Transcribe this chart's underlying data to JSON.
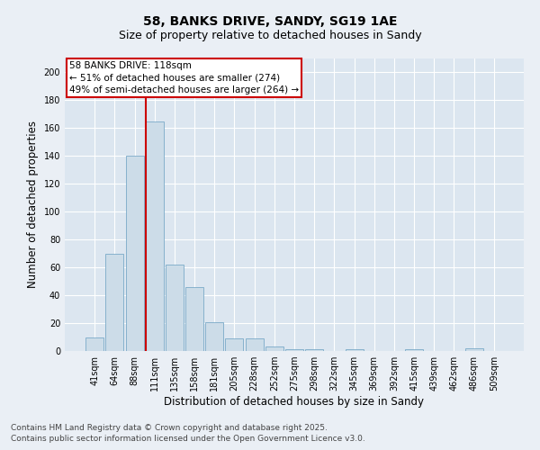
{
  "title_line1": "58, BANKS DRIVE, SANDY, SG19 1AE",
  "title_line2": "Size of property relative to detached houses in Sandy",
  "xlabel": "Distribution of detached houses by size in Sandy",
  "ylabel": "Number of detached properties",
  "categories": [
    "41sqm",
    "64sqm",
    "88sqm",
    "111sqm",
    "135sqm",
    "158sqm",
    "181sqm",
    "205sqm",
    "228sqm",
    "252sqm",
    "275sqm",
    "298sqm",
    "322sqm",
    "345sqm",
    "369sqm",
    "392sqm",
    "415sqm",
    "439sqm",
    "462sqm",
    "486sqm",
    "509sqm"
  ],
  "values": [
    10,
    70,
    140,
    165,
    62,
    46,
    21,
    9,
    9,
    3,
    1,
    1,
    0,
    1,
    0,
    0,
    1,
    0,
    0,
    2,
    0
  ],
  "bar_color": "#ccdce8",
  "bar_edge_color": "#7aaac8",
  "bar_linewidth": 0.6,
  "red_line_x": 2.57,
  "annotation_title": "58 BANKS DRIVE: 118sqm",
  "annotation_line1": "← 51% of detached houses are smaller (274)",
  "annotation_line2": "49% of semi-detached houses are larger (264) →",
  "annotation_box_color": "#ffffff",
  "annotation_box_edge": "#cc0000",
  "ylim": [
    0,
    210
  ],
  "yticks": [
    0,
    20,
    40,
    60,
    80,
    100,
    120,
    140,
    160,
    180,
    200
  ],
  "background_color": "#eaeff5",
  "plot_background": "#dce6f0",
  "grid_color": "#ffffff",
  "footnote_line1": "Contains HM Land Registry data © Crown copyright and database right 2025.",
  "footnote_line2": "Contains public sector information licensed under the Open Government Licence v3.0.",
  "title_fontsize": 10,
  "subtitle_fontsize": 9,
  "axis_label_fontsize": 8.5,
  "tick_fontsize": 7,
  "annotation_fontsize": 7.5,
  "footnote_fontsize": 6.5
}
